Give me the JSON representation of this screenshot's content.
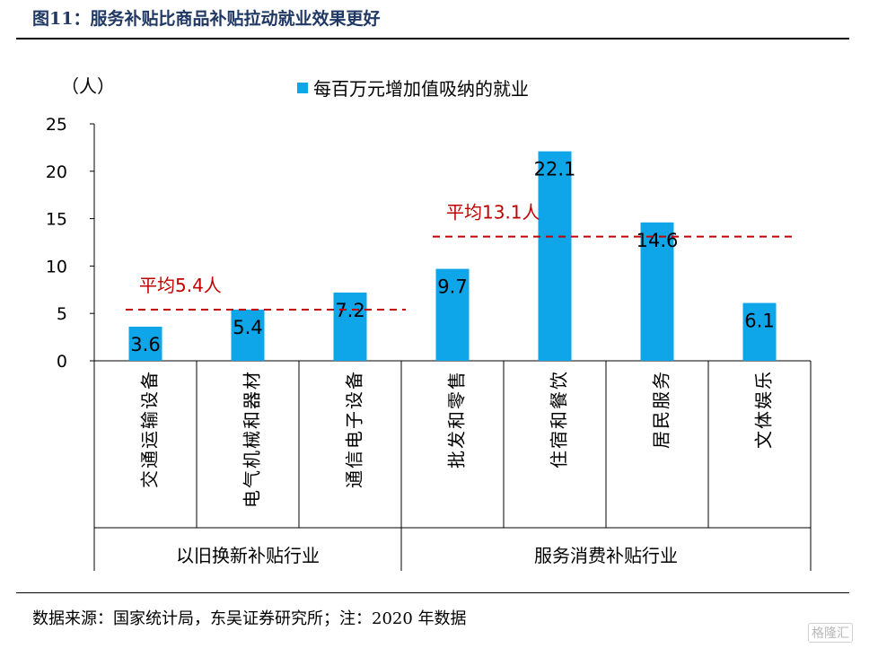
{
  "header": {
    "title": "图11：服务补贴比商品补贴拉动就业效果更好"
  },
  "footer": {
    "source": "数据来源：国家统计局，东吴证券研究所；注：2020 年数据"
  },
  "watermark": {
    "text": "格隆汇"
  },
  "chart_data": {
    "type": "bar",
    "ylabel": "（人）",
    "ylim": [
      0,
      25
    ],
    "yticks": [
      "0",
      "5",
      "10",
      "15",
      "20",
      "25"
    ],
    "legend": {
      "label": "每百万元增加值吸纳的就业",
      "position": "top-center"
    },
    "categories": [
      "交通运输设备",
      "电气机械和器材",
      "通信电子设备",
      "批发和零售",
      "住宿和餐饮",
      "居民服务",
      "文体娱乐"
    ],
    "series": [
      {
        "name": "每百万元增加值吸纳的就业",
        "values": [
          3.6,
          5.4,
          7.2,
          9.7,
          22.1,
          14.6,
          6.1
        ],
        "color": "#0ea5e9"
      }
    ],
    "data_labels": [
      "3.6",
      "5.4",
      "7.2",
      "9.7",
      "22.1",
      "14.6",
      "6.1"
    ],
    "groups": [
      {
        "label": "以旧换新补贴行业",
        "start": 0,
        "end": 2
      },
      {
        "label": "服务消费补贴行业",
        "start": 3,
        "end": 6
      }
    ],
    "reference_lines": [
      {
        "label": "平均5.4人",
        "value": 5.4,
        "from": 0,
        "to": 2,
        "color": "#c00000"
      },
      {
        "label": "平均13.1人",
        "value": 13.1,
        "from": 3,
        "to": 6,
        "color": "#c00000"
      }
    ],
    "grid": false
  }
}
